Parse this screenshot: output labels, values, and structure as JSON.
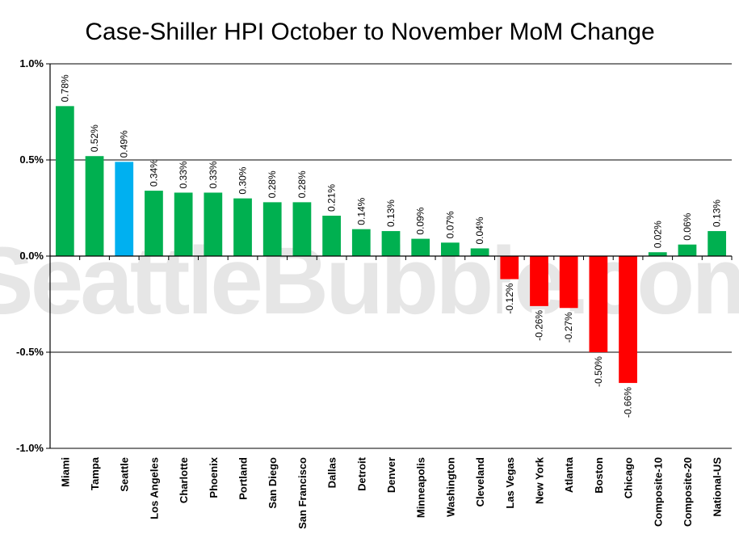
{
  "watermark": "SeattleBubble.com",
  "chart_data": {
    "type": "bar",
    "title": "Case-Shiller HPI October to November MoM Change",
    "xlabel": "",
    "ylabel": "",
    "ylim": [
      -1.0,
      1.0
    ],
    "yticks": [
      1.0,
      0.5,
      0.0,
      -0.5,
      -1.0
    ],
    "ytick_labels": [
      "1.0%",
      "0.5%",
      "0.0%",
      "-0.5%",
      "-1.0%"
    ],
    "grid": "horizontal",
    "legend": "none",
    "categories": [
      "Miami",
      "Tampa",
      "Seattle",
      "Los Angeles",
      "Charlotte",
      "Phoenix",
      "Portland",
      "San Diego",
      "San Francisco",
      "Dallas",
      "Detroit",
      "Denver",
      "Minneapolis",
      "Washington",
      "Cleveland",
      "Las Vegas",
      "New York",
      "Atlanta",
      "Boston",
      "Chicago",
      "Composite-10",
      "Composite-20",
      "National-US"
    ],
    "values": [
      0.78,
      0.52,
      0.49,
      0.34,
      0.33,
      0.33,
      0.3,
      0.28,
      0.28,
      0.21,
      0.14,
      0.13,
      0.09,
      0.07,
      0.04,
      -0.12,
      -0.26,
      -0.27,
      -0.5,
      -0.66,
      0.02,
      0.06,
      0.13
    ],
    "data_labels": [
      "0.78%",
      "0.52%",
      "0.49%",
      "0.34%",
      "0.33%",
      "0.33%",
      "0.30%",
      "0.28%",
      "0.28%",
      "0.21%",
      "0.14%",
      "0.13%",
      "0.09%",
      "0.07%",
      "0.04%",
      "-0.12%",
      "-0.26%",
      "-0.27%",
      "-0.50%",
      "-0.66%",
      "0.02%",
      "0.06%",
      "0.13%"
    ],
    "colors": {
      "positive": "#00b050",
      "negative": "#ff0000",
      "highlight": "#00b0f0",
      "highlight_category": "Seattle",
      "grid": "#000000"
    }
  }
}
